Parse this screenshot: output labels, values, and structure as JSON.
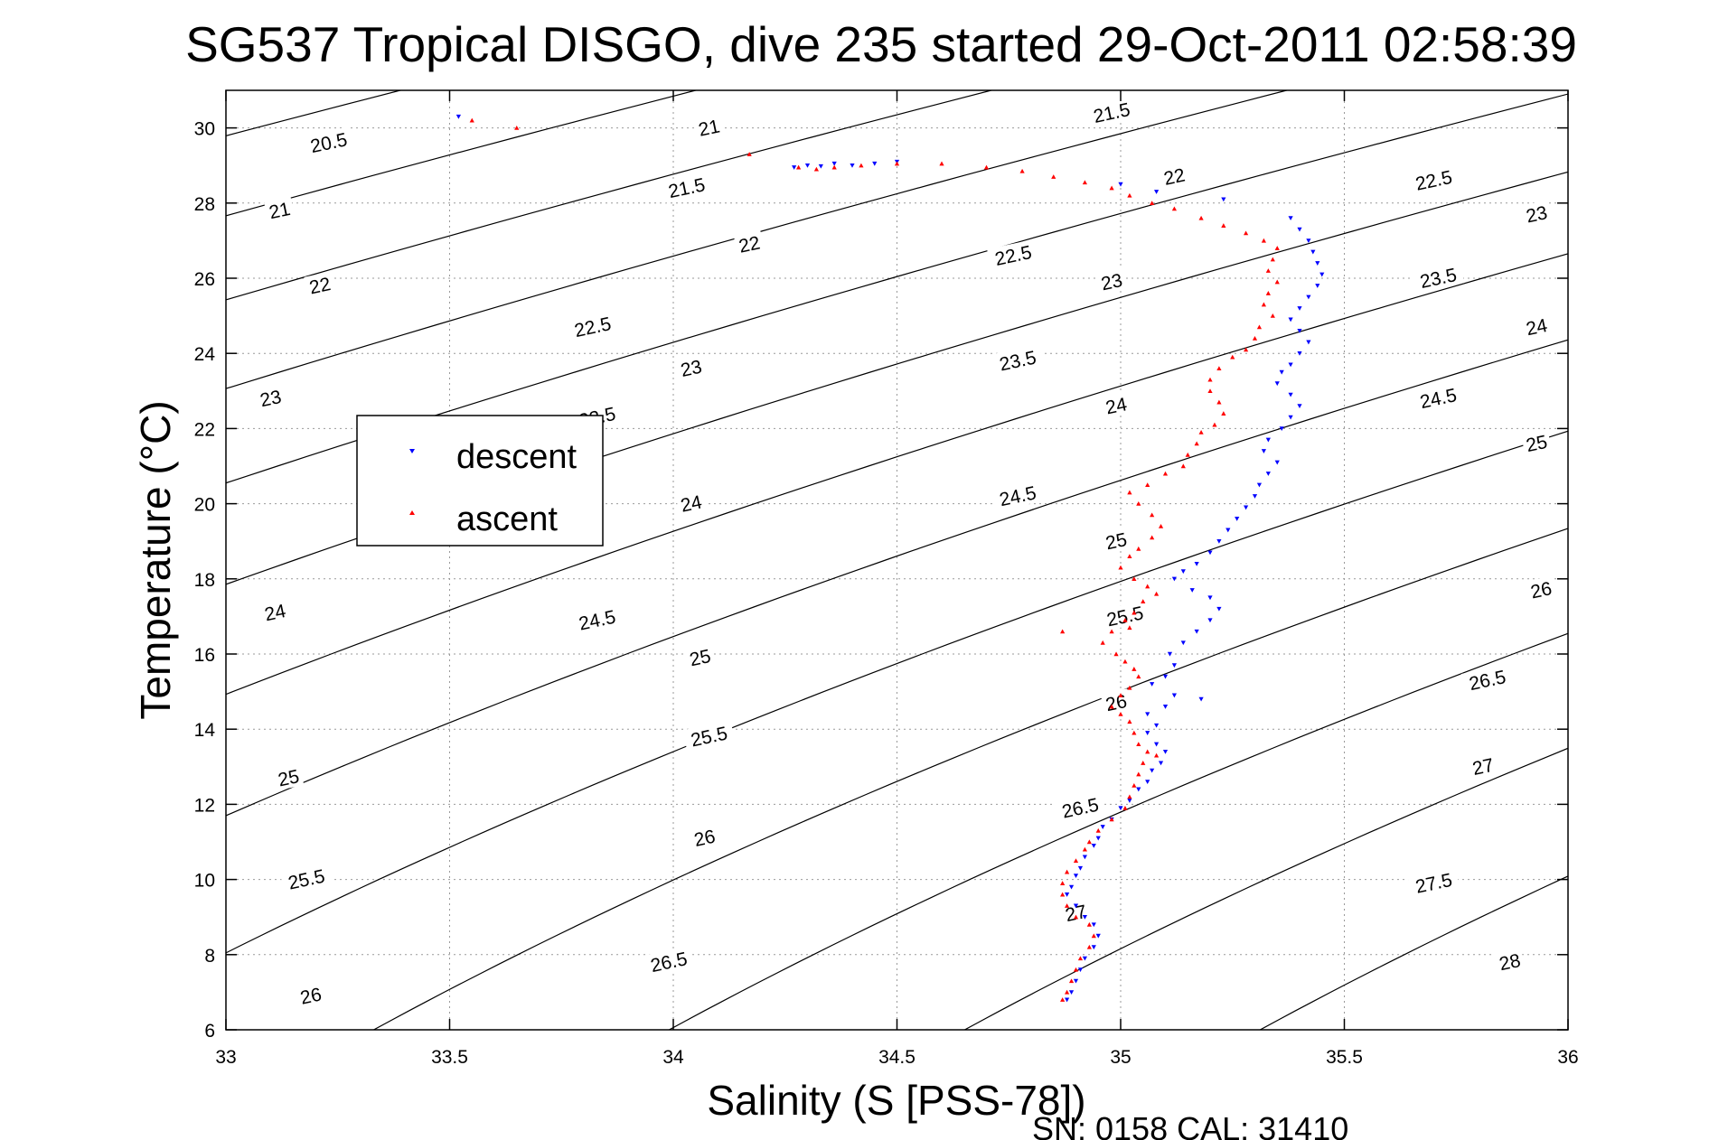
{
  "chart_data": {
    "type": "scatter",
    "title": "SG537 Tropical DISGO, dive 235 started 29-Oct-2011 02:58:39",
    "xlabel": "Salinity (S [PSS-78])",
    "ylabel": "Temperature (°C)",
    "xlim": [
      33,
      36
    ],
    "ylim": [
      6,
      31
    ],
    "xticks": [
      33,
      33.5,
      34,
      34.5,
      35,
      35.5,
      36
    ],
    "xtick_labels": [
      "33",
      "33.5",
      "34",
      "34.5",
      "35",
      "35.5",
      "36"
    ],
    "yticks": [
      6,
      8,
      10,
      12,
      14,
      16,
      18,
      20,
      22,
      24,
      26,
      28,
      30
    ],
    "ytick_labels": [
      "6",
      "8",
      "10",
      "12",
      "14",
      "16",
      "18",
      "20",
      "22",
      "24",
      "26",
      "28",
      "30"
    ],
    "grid": true,
    "legend_position": "left-middle",
    "footer": "SN: 0158  CAL: 31410",
    "contours": {
      "quantity": "sigma-theta",
      "levels": [
        20.5,
        21,
        21.5,
        22,
        22.5,
        23,
        23.5,
        24,
        24.5,
        25,
        25.5,
        26,
        26.5,
        27,
        27.5,
        28
      ],
      "labels": [
        {
          "text": "20.5",
          "s": 33.23,
          "t": 29.6
        },
        {
          "text": "21",
          "s": 33.12,
          "t": 27.8
        },
        {
          "text": "21",
          "s": 34.08,
          "t": 30.0
        },
        {
          "text": "21.5",
          "s": 34.03,
          "t": 28.4
        },
        {
          "text": "21.5",
          "s": 34.98,
          "t": 30.4
        },
        {
          "text": "22",
          "s": 33.21,
          "t": 25.8
        },
        {
          "text": "22",
          "s": 34.17,
          "t": 26.9
        },
        {
          "text": "22",
          "s": 35.12,
          "t": 28.7
        },
        {
          "text": "22.5",
          "s": 33.82,
          "t": 24.7
        },
        {
          "text": "22.5",
          "s": 34.76,
          "t": 26.6
        },
        {
          "text": "22.5",
          "s": 35.7,
          "t": 28.6
        },
        {
          "text": "23",
          "s": 33.1,
          "t": 22.8
        },
        {
          "text": "23",
          "s": 34.04,
          "t": 23.6
        },
        {
          "text": "23",
          "s": 34.98,
          "t": 25.9
        },
        {
          "text": "23",
          "s": 35.93,
          "t": 27.7
        },
        {
          "text": "23.5",
          "s": 33.83,
          "t": 22.3
        },
        {
          "text": "23.5",
          "s": 34.77,
          "t": 23.8
        },
        {
          "text": "23.5",
          "s": 35.71,
          "t": 26.0
        },
        {
          "text": "24",
          "s": 34.04,
          "t": 20.0
        },
        {
          "text": "24",
          "s": 34.99,
          "t": 22.6
        },
        {
          "text": "24",
          "s": 35.93,
          "t": 24.7
        },
        {
          "text": "24",
          "s": 33.11,
          "t": 17.1
        },
        {
          "text": "24.5",
          "s": 33.83,
          "t": 16.9
        },
        {
          "text": "24.5",
          "s": 34.77,
          "t": 20.2
        },
        {
          "text": "24.5",
          "s": 35.71,
          "t": 22.8
        },
        {
          "text": "25",
          "s": 35.93,
          "t": 21.6
        },
        {
          "text": "25",
          "s": 34.06,
          "t": 15.9
        },
        {
          "text": "25",
          "s": 33.14,
          "t": 12.7
        },
        {
          "text": "25",
          "s": 34.99,
          "t": 19.0
        },
        {
          "text": "25.5",
          "s": 34.08,
          "t": 13.8
        },
        {
          "text": "25.5",
          "s": 33.18,
          "t": 10.0
        },
        {
          "text": "25.5",
          "s": 35.01,
          "t": 17.0
        },
        {
          "text": "26",
          "s": 35.94,
          "t": 17.7
        },
        {
          "text": "26",
          "s": 34.07,
          "t": 11.1
        },
        {
          "text": "26",
          "s": 33.19,
          "t": 6.9
        },
        {
          "text": "26",
          "s": 34.99,
          "t": 14.7
        },
        {
          "text": "26.5",
          "s": 35.82,
          "t": 15.3
        },
        {
          "text": "26.5",
          "s": 34.91,
          "t": 11.9
        },
        {
          "text": "26.5",
          "s": 33.99,
          "t": 7.8
        },
        {
          "text": "27",
          "s": 35.81,
          "t": 13.0
        },
        {
          "text": "27",
          "s": 34.9,
          "t": 9.1
        },
        {
          "text": "27.5",
          "s": 35.7,
          "t": 9.9
        },
        {
          "text": "28",
          "s": 35.87,
          "t": 7.8
        }
      ]
    },
    "series": [
      {
        "name": "descent",
        "color": "#0000ff",
        "marker": "triangle-down",
        "points": [
          [
            33.52,
            30.3
          ],
          [
            34.27,
            28.95
          ],
          [
            34.3,
            29.0
          ],
          [
            34.33,
            28.98
          ],
          [
            34.36,
            29.05
          ],
          [
            34.4,
            29.0
          ],
          [
            34.45,
            29.05
          ],
          [
            34.5,
            29.1
          ],
          [
            35.0,
            28.5
          ],
          [
            35.08,
            28.3
          ],
          [
            35.23,
            28.1
          ],
          [
            35.38,
            27.6
          ],
          [
            35.4,
            27.3
          ],
          [
            35.42,
            27.0
          ],
          [
            35.43,
            26.7
          ],
          [
            35.44,
            26.4
          ],
          [
            35.45,
            26.1
          ],
          [
            35.44,
            25.8
          ],
          [
            35.42,
            25.5
          ],
          [
            35.4,
            25.2
          ],
          [
            35.38,
            24.9
          ],
          [
            35.4,
            24.6
          ],
          [
            35.42,
            24.3
          ],
          [
            35.4,
            24.0
          ],
          [
            35.38,
            23.7
          ],
          [
            35.36,
            23.5
          ],
          [
            35.35,
            23.2
          ],
          [
            35.38,
            22.9
          ],
          [
            35.4,
            22.6
          ],
          [
            35.38,
            22.3
          ],
          [
            35.36,
            22.0
          ],
          [
            35.33,
            21.7
          ],
          [
            35.32,
            21.4
          ],
          [
            35.35,
            21.1
          ],
          [
            35.33,
            20.8
          ],
          [
            35.31,
            20.5
          ],
          [
            35.3,
            20.2
          ],
          [
            35.28,
            19.9
          ],
          [
            35.26,
            19.6
          ],
          [
            35.24,
            19.3
          ],
          [
            35.22,
            19.0
          ],
          [
            35.2,
            18.7
          ],
          [
            35.17,
            18.4
          ],
          [
            35.14,
            18.2
          ],
          [
            35.12,
            18.0
          ],
          [
            35.16,
            17.7
          ],
          [
            35.2,
            17.5
          ],
          [
            35.22,
            17.2
          ],
          [
            35.2,
            16.9
          ],
          [
            35.17,
            16.6
          ],
          [
            35.14,
            16.3
          ],
          [
            35.11,
            16.0
          ],
          [
            35.12,
            15.7
          ],
          [
            35.1,
            15.4
          ],
          [
            35.07,
            15.2
          ],
          [
            35.12,
            14.9
          ],
          [
            35.18,
            14.8
          ],
          [
            35.1,
            14.6
          ],
          [
            35.06,
            14.4
          ],
          [
            35.08,
            14.1
          ],
          [
            35.06,
            13.9
          ],
          [
            35.08,
            13.6
          ],
          [
            35.1,
            13.4
          ],
          [
            35.09,
            13.1
          ],
          [
            35.07,
            12.9
          ],
          [
            35.06,
            12.6
          ],
          [
            35.04,
            12.4
          ],
          [
            35.02,
            12.1
          ],
          [
            35.0,
            11.9
          ],
          [
            34.98,
            11.6
          ],
          [
            34.96,
            11.4
          ],
          [
            34.95,
            11.1
          ],
          [
            34.94,
            10.9
          ],
          [
            34.92,
            10.6
          ],
          [
            34.91,
            10.3
          ],
          [
            34.9,
            10.1
          ],
          [
            34.89,
            9.8
          ],
          [
            34.88,
            9.6
          ],
          [
            34.9,
            9.3
          ],
          [
            34.92,
            9.0
          ],
          [
            34.94,
            8.8
          ],
          [
            34.95,
            8.5
          ],
          [
            34.94,
            8.2
          ],
          [
            34.92,
            7.9
          ],
          [
            34.91,
            7.6
          ],
          [
            34.9,
            7.3
          ],
          [
            34.89,
            7.0
          ],
          [
            34.88,
            6.8
          ]
        ]
      },
      {
        "name": "ascent",
        "color": "#ff0000",
        "marker": "triangle-up",
        "points": [
          [
            33.55,
            30.2
          ],
          [
            33.65,
            30.0
          ],
          [
            34.17,
            29.3
          ],
          [
            34.28,
            28.95
          ],
          [
            34.32,
            28.9
          ],
          [
            34.36,
            28.95
          ],
          [
            34.42,
            29.0
          ],
          [
            34.5,
            29.05
          ],
          [
            34.6,
            29.05
          ],
          [
            34.7,
            28.95
          ],
          [
            34.78,
            28.85
          ],
          [
            34.85,
            28.7
          ],
          [
            34.92,
            28.55
          ],
          [
            34.98,
            28.4
          ],
          [
            35.02,
            28.2
          ],
          [
            35.07,
            28.0
          ],
          [
            35.12,
            27.85
          ],
          [
            35.18,
            27.6
          ],
          [
            35.23,
            27.4
          ],
          [
            35.28,
            27.2
          ],
          [
            35.32,
            27.0
          ],
          [
            35.35,
            26.8
          ],
          [
            35.34,
            26.5
          ],
          [
            35.33,
            26.2
          ],
          [
            35.35,
            25.9
          ],
          [
            35.33,
            25.6
          ],
          [
            35.32,
            25.3
          ],
          [
            35.34,
            25.0
          ],
          [
            35.31,
            24.7
          ],
          [
            35.3,
            24.4
          ],
          [
            35.28,
            24.1
          ],
          [
            35.25,
            23.9
          ],
          [
            35.22,
            23.6
          ],
          [
            35.2,
            23.3
          ],
          [
            35.2,
            23.0
          ],
          [
            35.22,
            22.7
          ],
          [
            35.23,
            22.4
          ],
          [
            35.21,
            22.1
          ],
          [
            35.18,
            21.9
          ],
          [
            35.17,
            21.6
          ],
          [
            35.15,
            21.3
          ],
          [
            35.14,
            21.0
          ],
          [
            35.1,
            20.8
          ],
          [
            35.06,
            20.5
          ],
          [
            35.02,
            20.3
          ],
          [
            35.04,
            20.0
          ],
          [
            35.07,
            19.7
          ],
          [
            35.09,
            19.4
          ],
          [
            35.07,
            19.1
          ],
          [
            35.04,
            18.8
          ],
          [
            35.02,
            18.6
          ],
          [
            35.0,
            18.3
          ],
          [
            35.03,
            18.0
          ],
          [
            35.06,
            17.8
          ],
          [
            35.08,
            17.6
          ],
          [
            35.05,
            17.4
          ],
          [
            35.03,
            17.1
          ],
          [
            35.01,
            16.9
          ],
          [
            35.02,
            16.7
          ],
          [
            34.98,
            16.6
          ],
          [
            34.87,
            16.6
          ],
          [
            34.96,
            16.3
          ],
          [
            34.99,
            16.0
          ],
          [
            35.01,
            15.8
          ],
          [
            35.03,
            15.6
          ],
          [
            35.04,
            15.4
          ],
          [
            35.02,
            15.1
          ],
          [
            35.0,
            14.9
          ],
          [
            34.98,
            14.6
          ],
          [
            35.0,
            14.4
          ],
          [
            35.02,
            14.2
          ],
          [
            35.03,
            13.9
          ],
          [
            35.04,
            13.6
          ],
          [
            35.06,
            13.4
          ],
          [
            35.08,
            13.3
          ],
          [
            35.05,
            13.1
          ],
          [
            35.04,
            12.8
          ],
          [
            35.03,
            12.5
          ],
          [
            35.02,
            12.2
          ],
          [
            35.01,
            11.9
          ],
          [
            34.98,
            11.6
          ],
          [
            34.95,
            11.3
          ],
          [
            34.93,
            11.0
          ],
          [
            34.92,
            10.8
          ],
          [
            34.9,
            10.5
          ],
          [
            34.88,
            10.2
          ],
          [
            34.87,
            9.9
          ],
          [
            34.87,
            9.6
          ],
          [
            34.88,
            9.3
          ],
          [
            34.9,
            9.0
          ],
          [
            34.93,
            8.8
          ],
          [
            34.94,
            8.5
          ],
          [
            34.93,
            8.2
          ],
          [
            34.91,
            7.9
          ],
          [
            34.9,
            7.6
          ],
          [
            34.89,
            7.3
          ],
          [
            34.88,
            7.0
          ],
          [
            34.87,
            6.8
          ]
        ]
      }
    ]
  }
}
